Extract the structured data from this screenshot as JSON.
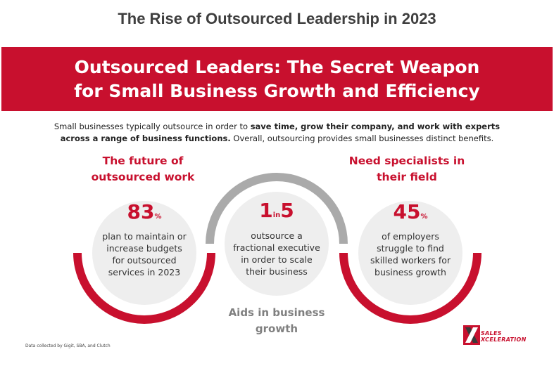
{
  "page_title": "The Rise of Outsourced Leadership in 2023",
  "banner": {
    "line1": "Outsourced Leaders: The Secret Weapon",
    "line2": "for Small Business Growth and Efficiency",
    "color": "#c8102e"
  },
  "intro": {
    "line1_plain": "Small businesses typically outsource in order to ",
    "line1_bold": "save time, grow their company, and work with experts",
    "line2_bold": "across a range of business functions.",
    "line2_plain": " Overall, outsourcing provides small businesses distinct benefits."
  },
  "benefits": {
    "left_heading": [
      "The future of",
      "outsourced work"
    ],
    "right_heading": [
      "Need specialists in",
      "their field"
    ],
    "middle_heading": [
      "Aids in business",
      "growth"
    ]
  },
  "stats": [
    {
      "big": "83",
      "suffix": "%",
      "lines": [
        "plan to maintain or",
        "increase budgets",
        "for outsourced",
        "services in 2023"
      ]
    },
    {
      "big_a": "1",
      "mid": "in",
      "big_b": "5",
      "lines": [
        "outsource a",
        "fractional executive",
        "in order to scale",
        "their business"
      ]
    },
    {
      "big": "45",
      "suffix": "%",
      "lines": [
        "of employers",
        "struggle to find",
        "skilled workers for",
        "business growth"
      ]
    }
  ],
  "footnote": "Data collected by Gigit, SBA, and Clutch",
  "logo": {
    "line1": "SALES",
    "line2": "XCELERATION",
    "icon": "sales-xceleration-logo-icon"
  },
  "colors": {
    "accent": "#c8102e",
    "arc_gray": "#aaaaaa",
    "circle_fill": "#eeeeee"
  }
}
